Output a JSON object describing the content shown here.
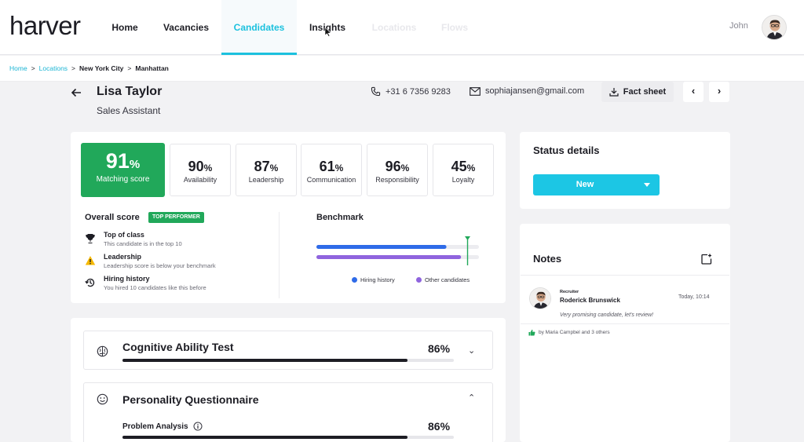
{
  "app": {
    "logo": "harver",
    "user": "John"
  },
  "nav": [
    {
      "label": "Home"
    },
    {
      "label": "Vacancies"
    },
    {
      "label": "Candidates"
    },
    {
      "label": "Insights"
    },
    {
      "label": "Locations"
    },
    {
      "label": "Flows"
    }
  ],
  "breadcrumb": {
    "home": "Home",
    "locations": "Locations",
    "city": "New York City",
    "area": "Manhattan",
    "sep": ">"
  },
  "candidate": {
    "name": "Lisa Taylor",
    "role": "Sales Assistant",
    "phone": "+31 6 7356 9283",
    "email": "sophiajansen@gmail.com",
    "fact_sheet": "Fact sheet"
  },
  "scores": {
    "main": {
      "value": "91",
      "unit": "%",
      "label": "Matching score"
    },
    "items": [
      {
        "value": "90",
        "unit": "%",
        "label": "Availability"
      },
      {
        "value": "87",
        "unit": "%",
        "label": "Leadership"
      },
      {
        "value": "61",
        "unit": "%",
        "label": "Communication"
      },
      {
        "value": "96",
        "unit": "%",
        "label": "Responsibility"
      },
      {
        "value": "45",
        "unit": "%",
        "label": "Loyalty"
      }
    ]
  },
  "overall": {
    "title": "Overall score",
    "badge": "TOP PERFORMER",
    "items": [
      {
        "title": "Top of class",
        "sub": "This candidate is in the top 10"
      },
      {
        "title": "Leadership",
        "sub": "Leadership score is below your benchmark"
      },
      {
        "title": "Hiring history",
        "sub": "You hired 10 candidates like this before"
      }
    ]
  },
  "benchmark": {
    "title": "Benchmark",
    "hiring_history_fraction": 0.8,
    "other_candidates_fraction": 0.89,
    "marker_fraction": 0.93,
    "legend": [
      "Hiring history",
      "Other candidates"
    ],
    "colors": {
      "hiring": "#2f6be8",
      "other": "#8f64de",
      "marker": "#21a85a"
    }
  },
  "tests": [
    {
      "title": "Cognitive Ability Test",
      "pct": "86%",
      "fill": 0.86,
      "expanded": false
    },
    {
      "title": "Personality Questionnaire",
      "pct": "",
      "fill": null,
      "expanded": true,
      "sub": {
        "title": "Problem Analysis",
        "pct": "86%",
        "fill": 0.86
      }
    }
  ],
  "status": {
    "title": "Status details",
    "value": "New"
  },
  "notes": {
    "title": "Notes",
    "entry": {
      "role": "Recruiter",
      "author": "Roderick Brunswick",
      "time": "Today, 10:14",
      "text": "Very promising candidate, let's review!",
      "likes": "by Maria Campbel and 3 others"
    }
  },
  "colors": {
    "accent": "#1cc1de",
    "success": "#21a85a",
    "dark": "#1d1d24"
  }
}
